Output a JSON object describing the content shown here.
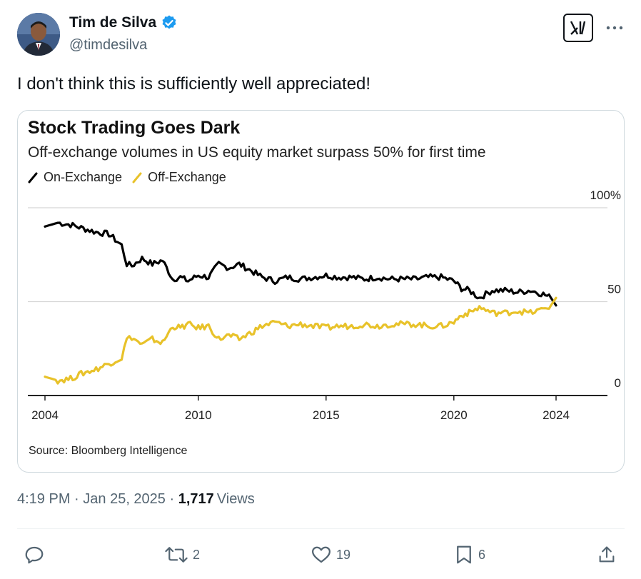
{
  "author": {
    "name": "Tim de Silva",
    "handle": "@timdesilva",
    "verified": true
  },
  "tweet": {
    "text": "I don't think this is sufficiently well appreciated!",
    "time": "4:19 PM",
    "date": "Jan 25, 2025",
    "views_count": "1,717",
    "views_label": "Views"
  },
  "actions": {
    "replies": "",
    "reposts": "2",
    "likes": "19",
    "bookmarks": "6"
  },
  "chart_data": {
    "type": "line",
    "title": "Stock Trading Goes Dark",
    "subtitle": "Off-exchange volumes in US equity market surpass 50% for first time",
    "source": "Source: Bloomberg Intelligence",
    "y_ticks": [
      "100%",
      "50",
      "0"
    ],
    "x_ticks": [
      "2004",
      "2010",
      "2015",
      "2020",
      "2024"
    ],
    "xlim": [
      2004,
      2026
    ],
    "ylim": [
      0,
      100
    ],
    "grid": true,
    "legend_placement": "top-left",
    "colors": {
      "on": "#000000",
      "off": "#e8c22a"
    },
    "series": [
      {
        "name": "On-Exchange",
        "x": [
          2004.0,
          2004.5,
          2005.0,
          2005.5,
          2006.0,
          2006.5,
          2007.0,
          2007.2,
          2007.4,
          2007.8,
          2008.2,
          2008.6,
          2009.0,
          2009.3,
          2009.6,
          2010.0,
          2010.4,
          2010.8,
          2011.2,
          2011.6,
          2012.0,
          2012.5,
          2013.0,
          2013.5,
          2014.0,
          2014.5,
          2015.0,
          2015.5,
          2016.0,
          2016.5,
          2017.0,
          2017.5,
          2018.0,
          2018.5,
          2019.0,
          2019.5,
          2020.0,
          2020.3,
          2020.6,
          2021.0,
          2021.5,
          2022.0,
          2022.5,
          2023.0,
          2023.5,
          2023.8,
          2024.0
        ],
        "y": [
          90,
          92,
          91,
          89,
          87,
          86,
          80,
          70,
          69,
          73,
          70,
          72,
          62,
          63,
          61,
          64,
          63,
          70,
          68,
          70,
          67,
          63,
          61,
          63,
          62,
          63,
          64,
          63,
          63,
          62,
          63,
          62,
          62,
          62,
          63,
          63,
          61,
          57,
          56,
          52,
          56,
          56,
          55,
          56,
          54,
          52,
          48
        ]
      },
      {
        "name": "Off-Exchange",
        "x": [
          2004.0,
          2004.5,
          2005.0,
          2005.5,
          2006.0,
          2006.5,
          2007.0,
          2007.2,
          2007.4,
          2007.8,
          2008.2,
          2008.6,
          2009.0,
          2009.3,
          2009.6,
          2010.0,
          2010.4,
          2010.8,
          2011.2,
          2011.6,
          2012.0,
          2012.5,
          2013.0,
          2013.5,
          2014.0,
          2014.5,
          2015.0,
          2015.5,
          2016.0,
          2016.5,
          2017.0,
          2017.5,
          2018.0,
          2018.5,
          2019.0,
          2019.5,
          2020.0,
          2020.3,
          2020.6,
          2021.0,
          2021.5,
          2022.0,
          2022.5,
          2023.0,
          2023.5,
          2023.8,
          2024.0
        ],
        "y": [
          10,
          8,
          9,
          12,
          14,
          17,
          20,
          30,
          31,
          27,
          30,
          28,
          37,
          36,
          38,
          36,
          37,
          30,
          32,
          30,
          33,
          37,
          39,
          37,
          38,
          37,
          36,
          37,
          37,
          38,
          37,
          38,
          38,
          38,
          37,
          37,
          39,
          43,
          44,
          47,
          44,
          44,
          45,
          44,
          46,
          48,
          52
        ]
      }
    ]
  }
}
